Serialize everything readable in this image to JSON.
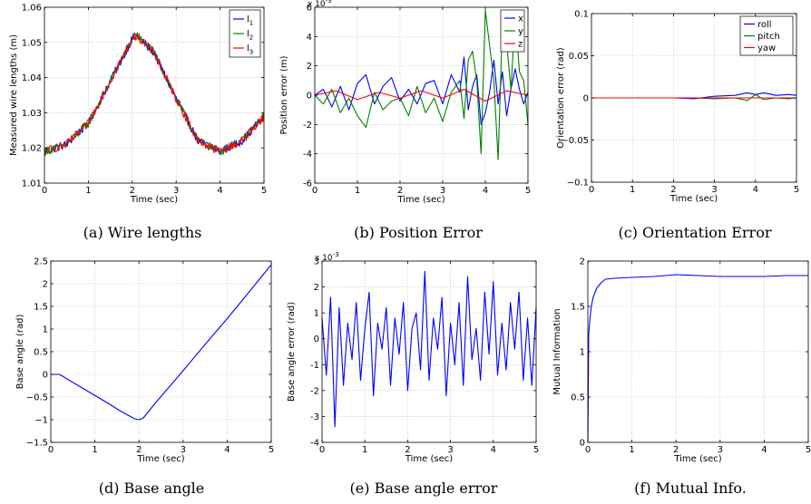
{
  "chart_data": [
    {
      "type": "line",
      "caption": "(a)  Wire lengths",
      "xlabel": "Time (sec)",
      "ylabel": "Measured wire lengths (m)",
      "xlim": [
        0,
        5
      ],
      "ylim": [
        1.01,
        1.06
      ],
      "xticks": [
        0,
        1,
        2,
        3,
        4,
        5
      ],
      "xtick_labels": [
        "0",
        "1",
        "2",
        "3",
        "4",
        "5"
      ],
      "yticks": [
        1.01,
        1.02,
        1.03,
        1.04,
        1.05,
        1.06
      ],
      "ytick_labels": [
        "1.01",
        "1.02",
        "1.03",
        "1.04",
        "1.05",
        "1.06"
      ],
      "grid": true,
      "legend_position": "top-right",
      "noise_amplitude": 0.0012,
      "series": [
        {
          "name": "l",
          "subscript": "1",
          "color": "#0000ff",
          "x": [
            0,
            0.5,
            1.0,
            1.5,
            2.0,
            2.1,
            2.5,
            3.0,
            3.5,
            4.0,
            4.5,
            5.0
          ],
          "y": [
            1.019,
            1.021,
            1.027,
            1.039,
            1.051,
            1.052,
            1.047,
            1.034,
            1.022,
            1.019,
            1.022,
            1.029
          ]
        },
        {
          "name": "l",
          "subscript": "2",
          "color": "#008000",
          "x": [
            0,
            0.5,
            1.0,
            1.5,
            2.0,
            2.1,
            2.5,
            3.0,
            3.5,
            4.0,
            4.5,
            5.0
          ],
          "y": [
            1.019,
            1.021,
            1.027,
            1.039,
            1.051,
            1.052,
            1.047,
            1.034,
            1.022,
            1.019,
            1.022,
            1.029
          ]
        },
        {
          "name": "l",
          "subscript": "3",
          "color": "#ff0000",
          "x": [
            0,
            0.5,
            1.0,
            1.5,
            2.0,
            2.1,
            2.5,
            3.0,
            3.5,
            4.0,
            4.5,
            5.0
          ],
          "y": [
            1.019,
            1.021,
            1.027,
            1.039,
            1.051,
            1.052,
            1.047,
            1.034,
            1.022,
            1.019,
            1.022,
            1.029
          ]
        }
      ]
    },
    {
      "type": "line",
      "caption": "(b)  Position Error",
      "xlabel": "Time (sec)",
      "ylabel": "Position error (m)",
      "exponent_label": "x 10",
      "exponent": "-3",
      "xlim": [
        0,
        5
      ],
      "ylim": [
        -6,
        6
      ],
      "xticks": [
        0,
        1,
        2,
        3,
        4,
        5
      ],
      "xtick_labels": [
        "0",
        "1",
        "2",
        "3",
        "4",
        "5"
      ],
      "yticks": [
        -6,
        -4,
        -2,
        0,
        2,
        4,
        6
      ],
      "ytick_labels": [
        "-6",
        "-4",
        "-2",
        "0",
        "2",
        "4",
        "6"
      ],
      "grid": true,
      "legend_position": "top-right",
      "series": [
        {
          "name": "x",
          "color": "#0000ff",
          "x": [
            0,
            0.2,
            0.4,
            0.6,
            0.8,
            1.0,
            1.2,
            1.4,
            1.6,
            1.8,
            2.0,
            2.2,
            2.4,
            2.6,
            2.8,
            3.0,
            3.2,
            3.4,
            3.5,
            3.6,
            3.7,
            3.8,
            3.9,
            4.0,
            4.1,
            4.2,
            4.3,
            4.4,
            4.5,
            4.6,
            4.7,
            4.8,
            4.9,
            5.0
          ],
          "y": [
            0,
            0.4,
            -0.8,
            0.6,
            -1.0,
            0.8,
            1.4,
            -0.6,
            0.6,
            1.2,
            -0.4,
            0.4,
            -0.6,
            0.8,
            1.0,
            -0.6,
            1.4,
            0.2,
            2.6,
            -1.0,
            0.6,
            1.4,
            -2.0,
            -1.2,
            0.2,
            2.4,
            -0.6,
            1.6,
            -1.4,
            0.4,
            1.8,
            0.4,
            -0.6,
            0.2
          ]
        },
        {
          "name": "y",
          "color": "#008000",
          "x": [
            0,
            0.2,
            0.4,
            0.6,
            0.8,
            1.0,
            1.2,
            1.4,
            1.6,
            1.8,
            2.0,
            2.2,
            2.4,
            2.6,
            2.8,
            3.0,
            3.2,
            3.4,
            3.5,
            3.6,
            3.7,
            3.8,
            3.9,
            4.0,
            4.1,
            4.2,
            4.3,
            4.4,
            4.5,
            4.6,
            4.7,
            4.8,
            4.9,
            5.0
          ],
          "y": [
            0,
            -0.6,
            0.4,
            -1.2,
            -0.2,
            -1.4,
            -2.2,
            0.2,
            -1.0,
            -0.4,
            -0.2,
            -1.4,
            0.6,
            -1.2,
            -0.2,
            -1.8,
            0.2,
            1.0,
            -1.6,
            2.4,
            3.0,
            1.0,
            -4.0,
            5.8,
            3.4,
            1.0,
            -4.4,
            4.8,
            3.6,
            0.4,
            5.4,
            1.6,
            1.0,
            -2.0
          ]
        },
        {
          "name": "z",
          "color": "#ff0000",
          "x": [
            0,
            0.5,
            1.0,
            1.5,
            2.0,
            2.5,
            3.0,
            3.5,
            4.0,
            4.5,
            5.0
          ],
          "y": [
            0,
            0.3,
            -0.3,
            0.2,
            -0.2,
            0.3,
            -0.2,
            0.4,
            -0.4,
            0.3,
            0.0
          ]
        }
      ]
    },
    {
      "type": "line",
      "caption": "(c)  Orientation Error",
      "xlabel": "Time (sec)",
      "ylabel": "Orientation error (rad)",
      "xlim": [
        0,
        5
      ],
      "ylim": [
        -0.1,
        0.1
      ],
      "xticks": [
        0,
        1,
        2,
        3,
        4,
        5
      ],
      "xtick_labels": [
        "0",
        "1",
        "2",
        "3",
        "4",
        "5"
      ],
      "yticks": [
        -0.1,
        -0.05,
        0,
        0.05,
        0.1
      ],
      "ytick_labels": [
        "−0.1",
        "−0.05",
        "0",
        "0.05",
        "0.1"
      ],
      "grid": true,
      "legend_position": "top-right",
      "series": [
        {
          "name": "roll",
          "color": "#0000ff",
          "x": [
            0,
            1.0,
            2.0,
            2.5,
            3.0,
            3.5,
            3.8,
            4.0,
            4.2,
            4.5,
            4.8,
            5.0
          ],
          "y": [
            0,
            0,
            0,
            -0.001,
            0.002,
            0.003,
            0.006,
            0.004,
            0.006,
            0.003,
            0.004,
            0.003
          ]
        },
        {
          "name": "pitch",
          "color": "#008000",
          "x": [
            0,
            1.0,
            2.0,
            2.5,
            3.0,
            3.5,
            3.8,
            4.0,
            4.2,
            4.5,
            4.8,
            5.0
          ],
          "y": [
            0,
            0,
            0,
            0,
            -0.001,
            0,
            -0.003,
            0.004,
            -0.002,
            0,
            -0.001,
            0
          ]
        },
        {
          "name": "yaw",
          "color": "#ff0000",
          "x": [
            0,
            1.0,
            2.0,
            3.0,
            4.0,
            5.0
          ],
          "y": [
            0,
            0,
            0,
            0,
            0,
            0
          ]
        }
      ]
    },
    {
      "type": "line",
      "caption": "(d)  Base angle",
      "xlabel": "Time (sec)",
      "ylabel": "Base angle (rad)",
      "xlim": [
        0,
        5
      ],
      "ylim": [
        -1.5,
        2.5
      ],
      "xticks": [
        0,
        1,
        2,
        3,
        4,
        5
      ],
      "xtick_labels": [
        "0",
        "1",
        "2",
        "3",
        "4",
        "5"
      ],
      "yticks": [
        -1.5,
        -1,
        -0.5,
        0,
        0.5,
        1,
        1.5,
        2,
        2.5
      ],
      "ytick_labels": [
        "−1.5",
        "−1",
        "−0.5",
        "0",
        "0.5",
        "1",
        "1.5",
        "2",
        "2.5"
      ],
      "grid": true,
      "series": [
        {
          "name": "",
          "color": "#0000ff",
          "x": [
            0,
            0.2,
            0.4,
            0.8,
            1.2,
            1.6,
            1.9,
            2.0,
            2.1,
            2.4,
            3.0,
            3.5,
            4.0,
            4.5,
            5.0
          ],
          "y": [
            0,
            0,
            -0.12,
            -0.35,
            -0.58,
            -0.82,
            -0.98,
            -1.0,
            -0.96,
            -0.6,
            0.08,
            0.66,
            1.23,
            1.82,
            2.42
          ]
        }
      ]
    },
    {
      "type": "line",
      "caption": "(e)  Base angle error",
      "xlabel": "Time (sec)",
      "ylabel": "Base angle error (rad)",
      "exponent_label": "x 10",
      "exponent": "-3",
      "xlim": [
        0,
        5
      ],
      "ylim": [
        -4,
        3
      ],
      "xticks": [
        0,
        1,
        2,
        3,
        4,
        5
      ],
      "xtick_labels": [
        "0",
        "1",
        "2",
        "3",
        "4",
        "5"
      ],
      "yticks": [
        -4,
        -3,
        -2,
        -1,
        0,
        1,
        2,
        3
      ],
      "ytick_labels": [
        "-4",
        "-3",
        "-2",
        "-1",
        "0",
        "1",
        "2",
        "3"
      ],
      "grid": true,
      "series": [
        {
          "name": "",
          "color": "#0000ff",
          "x": [
            0,
            0.1,
            0.2,
            0.3,
            0.4,
            0.5,
            0.6,
            0.7,
            0.8,
            0.9,
            1.0,
            1.1,
            1.2,
            1.3,
            1.4,
            1.5,
            1.6,
            1.7,
            1.8,
            1.9,
            2.0,
            2.1,
            2.2,
            2.3,
            2.4,
            2.5,
            2.6,
            2.7,
            2.8,
            2.9,
            3.0,
            3.1,
            3.2,
            3.3,
            3.4,
            3.5,
            3.6,
            3.7,
            3.8,
            3.9,
            4.0,
            4.1,
            4.2,
            4.3,
            4.4,
            4.5,
            4.6,
            4.7,
            4.8,
            4.9,
            5.0
          ],
          "y": [
            0.8,
            -1.4,
            1.6,
            -3.4,
            1.2,
            -1.8,
            0.6,
            -0.8,
            1.4,
            -1.6,
            0.4,
            1.8,
            -2.2,
            0.6,
            -0.4,
            1.2,
            -1.8,
            0.8,
            -0.6,
            1.4,
            -2.0,
            0.4,
            1.0,
            -1.2,
            2.6,
            -1.6,
            0.8,
            -0.4,
            1.6,
            -2.2,
            0.6,
            -1.0,
            1.4,
            -1.8,
            2.4,
            -0.8,
            0.4,
            -1.6,
            1.8,
            -0.6,
            2.2,
            -1.4,
            0.6,
            -1.2,
            1.4,
            -0.4,
            1.8,
            -1.6,
            0.8,
            -1.8,
            1.2
          ]
        }
      ]
    },
    {
      "type": "line",
      "caption": "(f)  Mutual Info.",
      "xlabel": "Time (sec)",
      "ylabel": "Mutual Information",
      "xlim": [
        0,
        5
      ],
      "ylim": [
        0,
        2
      ],
      "xticks": [
        0,
        1,
        2,
        3,
        4,
        5
      ],
      "xtick_labels": [
        "0",
        "1",
        "2",
        "3",
        "4",
        "5"
      ],
      "yticks": [
        0,
        0.5,
        1,
        1.5,
        2
      ],
      "ytick_labels": [
        "0",
        "0.5",
        "1",
        "1.5",
        "2"
      ],
      "grid": true,
      "series": [
        {
          "name": "",
          "color": "#0000ff",
          "x": [
            0,
            0.02,
            0.05,
            0.08,
            0.12,
            0.2,
            0.3,
            0.4,
            0.6,
            1.0,
            1.5,
            2.0,
            2.5,
            3.0,
            3.5,
            4.0,
            4.5,
            5.0
          ],
          "y": [
            0,
            1.2,
            1.38,
            1.5,
            1.6,
            1.7,
            1.76,
            1.8,
            1.81,
            1.82,
            1.83,
            1.85,
            1.84,
            1.83,
            1.83,
            1.83,
            1.84,
            1.84
          ]
        }
      ]
    }
  ]
}
